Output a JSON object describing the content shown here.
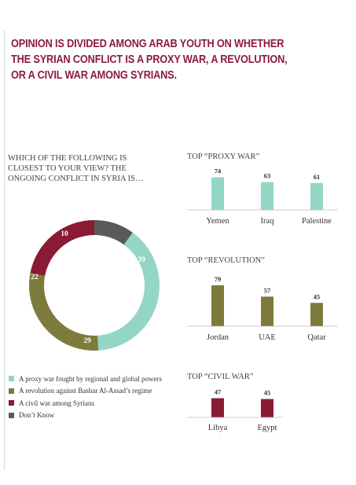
{
  "headline": [
    "OPINION IS DIVIDED AMONG ARAB YOUTH ON WHETHER",
    "THE SYRIAN CONFLICT IS A PROXY WAR, A REVOLUTION,",
    "OR A CIVIL WAR AMONG SYRIANS."
  ],
  "question": [
    "WHICH OF THE FOLLOWING IS",
    "CLOSEST TO YOUR VIEW? THE",
    "ONGOING CONFLICT IN SYRIA IS…"
  ],
  "colors": {
    "proxy": "#93d6c6",
    "revolution": "#7d7b3b",
    "civil": "#8b1a34",
    "dont_know": "#5a5a5a",
    "headline": "#8c1d3a"
  },
  "chart_data": [
    {
      "type": "pie",
      "categories": [
        "A proxy war fought by regional and global powers",
        "A revolution against Bashar Al-Assad’s regime",
        "A civil war among Syrians",
        "Don’t Know"
      ],
      "values": [
        39,
        29,
        22,
        10
      ],
      "legend_position": "bottom"
    },
    {
      "type": "bar",
      "title": "TOP “PROXY WAR”",
      "categories": [
        "Yemen",
        "Iraq",
        "Palestine"
      ],
      "values": [
        74,
        63,
        61
      ]
    },
    {
      "type": "bar",
      "title": "TOP “REVOLUTION”",
      "categories": [
        "Jordan",
        "UAE",
        "Qatar"
      ],
      "values": [
        79,
        57,
        45
      ]
    },
    {
      "type": "bar",
      "title": "TOP “CIVIL WAR”",
      "categories": [
        "Libya",
        "Egypt"
      ],
      "values": [
        47,
        45
      ]
    }
  ]
}
